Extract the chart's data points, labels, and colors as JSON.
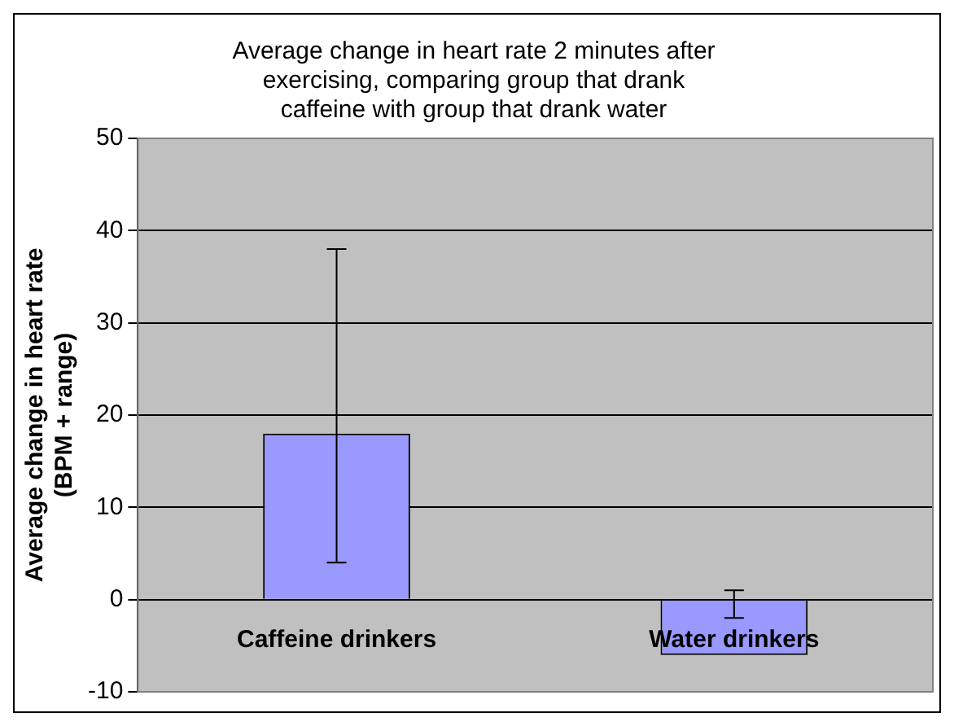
{
  "chart_data": {
    "type": "bar",
    "title": "Average change in heart rate 2 minutes after exercising, comparing group that drank caffeine with group that drank water",
    "ylabel": "Average change in heart rate (BPM + range)",
    "categories": [
      "Caffeine drinkers",
      "Water drinkers"
    ],
    "values": [
      18,
      -6
    ],
    "errors": [
      [
        4,
        38
      ],
      [
        -2,
        1
      ]
    ],
    "color": "#9999ff",
    "ylim": [
      -10,
      50
    ],
    "yticks": [
      -10,
      0,
      10,
      20,
      30,
      40,
      50
    ],
    "grid": "y"
  }
}
